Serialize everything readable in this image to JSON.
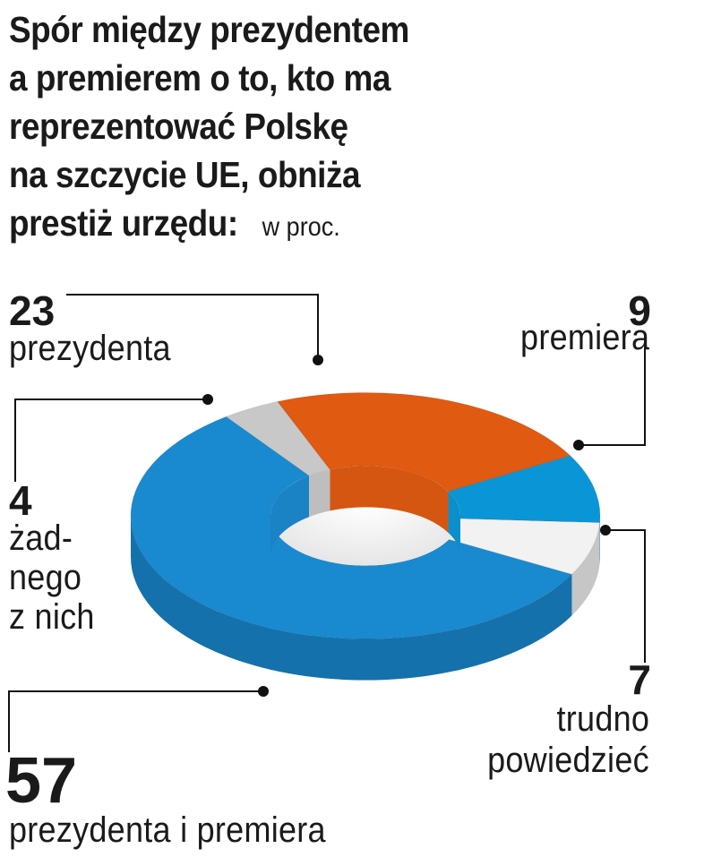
{
  "title_lines": [
    "Spór między prezydentem",
    "a premierem o to, kto ma",
    "reprezentować Polskę",
    "na szczycie UE, obniża",
    "prestiż urzędu:"
  ],
  "unit": "w proc.",
  "colors": {
    "prezydenta": "#e05a12",
    "premiera": "#0a96d6",
    "trudno_powiedziec": "#f2f2f2",
    "prezydenta_i_premiera": "#1a8ad0",
    "zadnego_z_nich": "#c8c8c8",
    "leader": "#111111"
  },
  "chart_data": {
    "type": "pie",
    "style": "3d-donut",
    "unit": "w proc.",
    "slices": [
      {
        "label": "prezydenta",
        "value": 23
      },
      {
        "label": "premiera",
        "value": 9
      },
      {
        "label": "trudno powiedzieć",
        "value": 7
      },
      {
        "label": "prezydenta i premiera",
        "value": 57
      },
      {
        "label": "żadnego z nich",
        "value": 4
      }
    ]
  },
  "labels": {
    "prezydenta": {
      "value": "23",
      "text": [
        "prezydenta"
      ]
    },
    "premiera": {
      "value": "9",
      "text": [
        "premiera"
      ]
    },
    "trudno": {
      "value": "7",
      "text": [
        "trudno",
        "powiedzieć"
      ]
    },
    "oba": {
      "value": "57",
      "text": [
        "prezydenta i premiera"
      ]
    },
    "zadnego": {
      "value": "4",
      "text": [
        "żad-",
        "nego",
        "z nich"
      ]
    }
  }
}
